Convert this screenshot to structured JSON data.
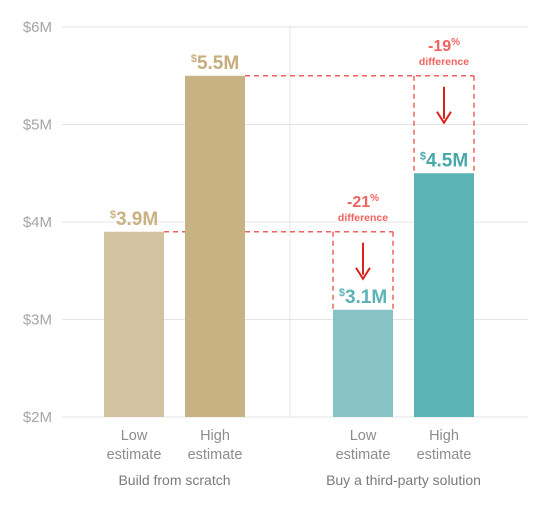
{
  "chart_data": {
    "type": "bar",
    "ylim": [
      2,
      6
    ],
    "y_ticks": [
      "$2M",
      "$3M",
      "$4M",
      "$5M",
      "$6M"
    ],
    "y_tick_values": [
      2,
      3,
      4,
      5,
      6
    ],
    "grid": true,
    "groups": [
      {
        "label": "Build from scratch",
        "bars": [
          {
            "label": [
              "Low",
              "estimate"
            ],
            "value": 3.9,
            "value_label": "3.9M",
            "color": "#d4c3a0",
            "text_color": "#c8b282"
          },
          {
            "label": [
              "High",
              "estimate"
            ],
            "value": 5.5,
            "value_label": "5.5M",
            "color": "#c6b283",
            "text_color": "#c6ad7e"
          }
        ]
      },
      {
        "label": "Buy a third-party solution",
        "bars": [
          {
            "label": [
              "Low",
              "estimate"
            ],
            "value": 3.1,
            "value_label": "3.1M",
            "color": "#86c2c6",
            "text_color": "#5bb3b6"
          },
          {
            "label": [
              "High",
              "estimate"
            ],
            "value": 4.5,
            "value_label": "4.5M",
            "color": "#5bb3b6",
            "text_color": "#4aa8ab"
          }
        ]
      }
    ],
    "currency_symbol": "$",
    "annotations": [
      {
        "pct": "-21",
        "pct_sign": "%",
        "word": "difference",
        "from_value": 3.9,
        "to_value": 3.1
      },
      {
        "pct": "-19",
        "pct_sign": "%",
        "word": "difference",
        "from_value": 5.5,
        "to_value": 4.5
      }
    ],
    "annotation_color": "#f0625f",
    "arrow_color": "#d9221c"
  }
}
